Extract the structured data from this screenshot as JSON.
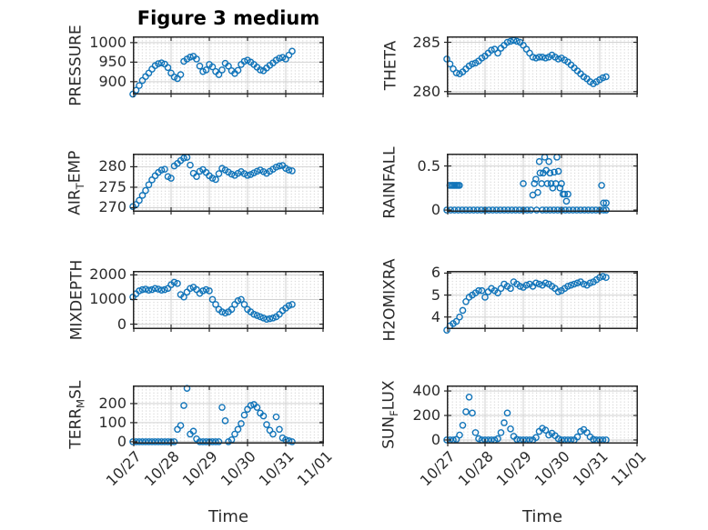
{
  "figure": {
    "title": "Figure 3 medium",
    "background": "#ffffff",
    "marker_color": "#1174b9",
    "frame_color": "#262626",
    "major_grid_color": "#d2d2d2",
    "minor_dot_color": "#c6c6c6",
    "text_color": "#2b2b2b"
  },
  "x_axis": {
    "label": "Time",
    "tick_labels": [
      "10/27",
      "10/28",
      "10/29",
      "10/30",
      "10/31",
      "11/01"
    ],
    "range_days": [
      0,
      5
    ]
  },
  "chart_data": [
    {
      "id": "pressure",
      "type": "scatter",
      "ylabel": "PRESSURE",
      "ylabel_parts": [
        {
          "t": "PRESSURE"
        }
      ],
      "yticks": [
        {
          "v": 900,
          "label": "900"
        },
        {
          "v": 950,
          "label": "950"
        },
        {
          "v": 1000,
          "label": "1000"
        }
      ],
      "ylim": [
        867,
        1016
      ],
      "grid": true,
      "show_x_tick_labels": false,
      "x_start": 0,
      "x_step": 0.08333,
      "values": [
        868,
        878,
        890,
        903,
        913,
        922,
        932,
        941,
        946,
        948,
        945,
        936,
        922,
        912,
        908,
        918,
        952,
        958,
        963,
        965,
        958,
        940,
        926,
        930,
        944,
        938,
        926,
        918,
        930,
        947,
        940,
        928,
        921,
        929,
        944,
        952,
        955,
        950,
        944,
        937,
        930,
        928,
        935,
        942,
        948,
        955,
        960,
        962,
        958,
        968,
        978
      ]
    },
    {
      "id": "theta",
      "type": "scatter",
      "ylabel": "THETA",
      "ylabel_parts": [
        {
          "t": "THETA"
        }
      ],
      "yticks": [
        {
          "v": 280,
          "label": "280"
        },
        {
          "v": 285,
          "label": "285"
        }
      ],
      "ylim": [
        279.7,
        285.6
      ],
      "grid": true,
      "show_x_tick_labels": false,
      "x_start": 0,
      "x_step": 0.08333,
      "values": [
        283.3,
        282.8,
        282.3,
        281.9,
        281.8,
        282.0,
        282.3,
        282.6,
        282.8,
        282.9,
        283.1,
        283.4,
        283.6,
        283.9,
        284.2,
        284.3,
        283.9,
        284.4,
        284.7,
        285.0,
        285.1,
        285.2,
        285.1,
        285.0,
        284.7,
        284.3,
        283.9,
        283.5,
        283.4,
        283.5,
        283.5,
        283.4,
        283.5,
        283.7,
        283.5,
        283.3,
        283.4,
        283.2,
        283.0,
        282.7,
        282.4,
        282.1,
        281.8,
        281.5,
        281.3,
        281.0,
        280.8,
        281.0,
        281.2,
        281.4,
        281.5
      ]
    },
    {
      "id": "airtemp",
      "type": "scatter",
      "ylabel": "AIR_TEMP",
      "ylabel_parts": [
        {
          "t": "AIR"
        },
        {
          "sub": "T"
        },
        {
          "t": "EMP"
        }
      ],
      "yticks": [
        {
          "v": 270,
          "label": "270"
        },
        {
          "v": 275,
          "label": "275"
        },
        {
          "v": 280,
          "label": "280"
        }
      ],
      "ylim": [
        269,
        283.2
      ],
      "grid": true,
      "show_x_tick_labels": false,
      "x_start": 0,
      "x_step": 0.08333,
      "values": [
        270.3,
        270.8,
        271.8,
        273.0,
        274.2,
        275.6,
        276.8,
        277.8,
        278.6,
        279.2,
        279.4,
        277.6,
        277.2,
        280.2,
        280.8,
        281.5,
        282.1,
        282.3,
        280.4,
        278.4,
        277.6,
        278.9,
        279.3,
        278.6,
        277.8,
        277.2,
        276.9,
        278.3,
        279.6,
        279.2,
        278.7,
        278.2,
        277.9,
        278.4,
        278.8,
        278.3,
        277.9,
        278.1,
        278.5,
        278.9,
        279.2,
        278.8,
        278.4,
        278.9,
        279.4,
        279.9,
        280.2,
        280.3,
        279.6,
        279.2,
        279.0
      ]
    },
    {
      "id": "rainfall",
      "type": "scatter",
      "ylabel": "RAINFALL",
      "ylabel_parts": [
        {
          "t": "RAINFALL"
        }
      ],
      "yticks": [
        {
          "v": 0,
          "label": "0"
        },
        {
          "v": 0.5,
          "label": "0.5"
        }
      ],
      "ylim": [
        -0.02,
        0.64
      ],
      "grid": true,
      "show_x_tick_labels": false,
      "points": [
        [
          0.0,
          0
        ],
        [
          0.1,
          0
        ],
        [
          0.2,
          0
        ],
        [
          0.3,
          0
        ],
        [
          0.4,
          0
        ],
        [
          0.5,
          0
        ],
        [
          0.6,
          0
        ],
        [
          0.7,
          0
        ],
        [
          0.8,
          0
        ],
        [
          0.9,
          0
        ],
        [
          1.0,
          0
        ],
        [
          1.1,
          0
        ],
        [
          1.2,
          0
        ],
        [
          1.3,
          0
        ],
        [
          1.4,
          0
        ],
        [
          1.5,
          0
        ],
        [
          1.6,
          0
        ],
        [
          1.7,
          0
        ],
        [
          1.8,
          0
        ],
        [
          1.9,
          0
        ],
        [
          2.0,
          0
        ],
        [
          2.1,
          0
        ],
        [
          2.2,
          0
        ],
        [
          2.35,
          0
        ],
        [
          2.5,
          0
        ],
        [
          2.6,
          0
        ],
        [
          2.7,
          0
        ],
        [
          2.8,
          0
        ],
        [
          2.9,
          0
        ],
        [
          3.0,
          0
        ],
        [
          3.1,
          0
        ],
        [
          3.2,
          0
        ],
        [
          3.3,
          0
        ],
        [
          3.4,
          0
        ],
        [
          3.5,
          0
        ],
        [
          3.6,
          0
        ],
        [
          3.7,
          0
        ],
        [
          3.8,
          0
        ],
        [
          3.9,
          0
        ],
        [
          4.0,
          0
        ],
        [
          4.1,
          0
        ],
        [
          4.17,
          0
        ],
        [
          0.08,
          0.28
        ],
        [
          0.13,
          0.28
        ],
        [
          0.17,
          0.28
        ],
        [
          0.21,
          0.28
        ],
        [
          0.25,
          0.28
        ],
        [
          0.29,
          0.28
        ],
        [
          0.33,
          0.28
        ],
        [
          2.0,
          0.3
        ],
        [
          2.25,
          0.17
        ],
        [
          2.29,
          0.3
        ],
        [
          2.33,
          0.35
        ],
        [
          2.38,
          0.2
        ],
        [
          2.42,
          0.55
        ],
        [
          2.44,
          0.42
        ],
        [
          2.48,
          0.3
        ],
        [
          2.52,
          0.42
        ],
        [
          2.56,
          0.6
        ],
        [
          2.6,
          0.45
        ],
        [
          2.63,
          0.3
        ],
        [
          2.67,
          0.55
        ],
        [
          2.7,
          0.42
        ],
        [
          2.73,
          0.3
        ],
        [
          2.77,
          0.25
        ],
        [
          2.81,
          0.43
        ],
        [
          2.85,
          0.3
        ],
        [
          2.88,
          0.6
        ],
        [
          2.92,
          0.44
        ],
        [
          2.96,
          0.25
        ],
        [
          3.0,
          0.3
        ],
        [
          3.04,
          0.18
        ],
        [
          3.08,
          0.18
        ],
        [
          3.13,
          0.1
        ],
        [
          3.17,
          0.18
        ],
        [
          4.05,
          0.28
        ],
        [
          4.1,
          0.08
        ],
        [
          4.17,
          0.08
        ]
      ]
    },
    {
      "id": "mixdepth",
      "type": "scatter",
      "ylabel": "MIXDEPTH",
      "ylabel_parts": [
        {
          "t": "MIXDEPTH"
        }
      ],
      "yticks": [
        {
          "v": 0,
          "label": "0"
        },
        {
          "v": 1000,
          "label": "1000"
        },
        {
          "v": 2000,
          "label": "2000"
        }
      ],
      "ylim": [
        -200,
        2160
      ],
      "grid": true,
      "show_x_tick_labels": false,
      "x_start": 0,
      "x_step": 0.08333,
      "values": [
        1100,
        1230,
        1350,
        1400,
        1420,
        1380,
        1400,
        1450,
        1420,
        1380,
        1400,
        1450,
        1600,
        1700,
        1650,
        1200,
        1100,
        1300,
        1450,
        1500,
        1400,
        1250,
        1350,
        1400,
        1350,
        1000,
        800,
        600,
        500,
        450,
        500,
        600,
        800,
        950,
        1000,
        800,
        600,
        500,
        400,
        350,
        300,
        250,
        200,
        220,
        250,
        300,
        400,
        550,
        650,
        750,
        800
      ]
    },
    {
      "id": "h2omixra",
      "type": "scatter",
      "ylabel": "H2OMIXRA",
      "ylabel_parts": [
        {
          "t": "H2OMIXRA"
        }
      ],
      "yticks": [
        {
          "v": 4,
          "label": "4"
        },
        {
          "v": 5,
          "label": "5"
        },
        {
          "v": 6,
          "label": "6"
        }
      ],
      "ylim": [
        3.45,
        6.1
      ],
      "grid": true,
      "show_x_tick_labels": false,
      "x_start": 0,
      "x_step": 0.08333,
      "values": [
        3.4,
        3.6,
        3.7,
        3.8,
        4.0,
        4.3,
        4.7,
        4.9,
        5.0,
        5.1,
        5.2,
        5.2,
        4.9,
        5.15,
        5.3,
        5.2,
        5.1,
        5.3,
        5.5,
        5.4,
        5.3,
        5.6,
        5.5,
        5.4,
        5.35,
        5.45,
        5.5,
        5.4,
        5.55,
        5.5,
        5.45,
        5.55,
        5.5,
        5.4,
        5.3,
        5.15,
        5.2,
        5.3,
        5.4,
        5.45,
        5.5,
        5.55,
        5.6,
        5.5,
        5.45,
        5.55,
        5.6,
        5.7,
        5.8,
        5.85,
        5.8
      ]
    },
    {
      "id": "terrmsl",
      "type": "scatter",
      "ylabel": "TERR_MSL",
      "ylabel_parts": [
        {
          "t": "TERR"
        },
        {
          "sub": "M"
        },
        {
          "t": "SL"
        }
      ],
      "yticks": [
        {
          "v": 0,
          "label": "0"
        },
        {
          "v": 100,
          "label": "100"
        },
        {
          "v": 200,
          "label": "200"
        }
      ],
      "ylim": [
        -10,
        295
      ],
      "grid": true,
      "show_x_tick_labels": true,
      "xlabel": "Time",
      "x_start": 0,
      "x_step": 0.08333,
      "values": [
        0,
        0,
        0,
        0,
        0,
        0,
        0,
        0,
        0,
        0,
        0,
        0,
        0,
        0,
        65,
        85,
        190,
        280,
        40,
        55,
        15,
        0,
        0,
        0,
        0,
        0,
        0,
        0,
        180,
        110,
        0,
        10,
        40,
        65,
        95,
        140,
        170,
        190,
        195,
        180,
        150,
        135,
        90,
        60,
        40,
        130,
        65,
        20,
        10,
        5,
        0
      ]
    },
    {
      "id": "sunflux",
      "type": "scatter",
      "ylabel": "SUN_FLUX",
      "ylabel_parts": [
        {
          "t": "SUN"
        },
        {
          "sub": "F"
        },
        {
          "t": "LUX"
        }
      ],
      "yticks": [
        {
          "v": 0,
          "label": "0"
        },
        {
          "v": 200,
          "label": "200"
        },
        {
          "v": 400,
          "label": "400"
        }
      ],
      "ylim": [
        -30,
        445
      ],
      "grid": true,
      "show_x_tick_labels": true,
      "xlabel": "Time",
      "x_start": 0,
      "x_step": 0.08333,
      "values": [
        0,
        0,
        0,
        5,
        40,
        120,
        230,
        350,
        220,
        60,
        10,
        0,
        0,
        0,
        0,
        0,
        10,
        60,
        140,
        220,
        90,
        30,
        5,
        0,
        0,
        0,
        0,
        0,
        20,
        70,
        95,
        80,
        40,
        55,
        35,
        10,
        0,
        0,
        0,
        0,
        0,
        25,
        70,
        85,
        60,
        25,
        5,
        0,
        0,
        0,
        0
      ]
    }
  ]
}
